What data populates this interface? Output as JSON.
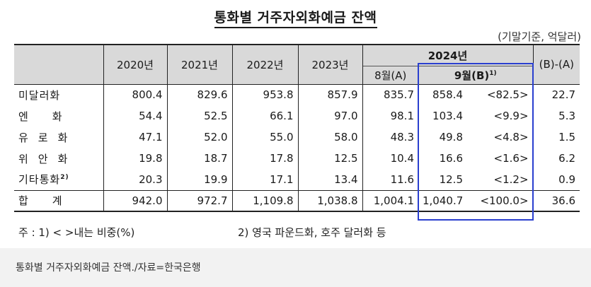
{
  "title": "통화별 거주자외화예금 잔액",
  "unit": "(기말기준, 억달러)",
  "headers": {
    "y2020": "2020년",
    "y2021": "2021년",
    "y2022": "2022년",
    "y2023": "2023년",
    "y2024": "2024년",
    "aug": "8월(A)",
    "sep": "9월(B)",
    "sep_note": "1)",
    "diff": "(B)-(A)"
  },
  "rows": [
    {
      "label": "미달러화",
      "y2020": "800.4",
      "y2021": "829.6",
      "y2022": "953.8",
      "y2023": "857.9",
      "aug": "835.7",
      "sep": "858.4",
      "share": "<82.5>",
      "diff": "22.7"
    },
    {
      "label": "엔화",
      "y2020": "54.4",
      "y2021": "52.5",
      "y2022": "66.1",
      "y2023": "97.0",
      "aug": "98.1",
      "sep": "103.4",
      "share": "<9.9>",
      "diff": "5.3"
    },
    {
      "label": "유로화",
      "y2020": "47.1",
      "y2021": "52.0",
      "y2022": "55.0",
      "y2023": "58.0",
      "aug": "48.3",
      "sep": "49.8",
      "share": "<4.8>",
      "diff": "1.5"
    },
    {
      "label": "위안화",
      "y2020": "19.8",
      "y2021": "18.7",
      "y2022": "17.8",
      "y2023": "12.5",
      "aug": "10.4",
      "sep": "16.6",
      "share": "<1.6>",
      "diff": "6.2"
    },
    {
      "label": "기타통화",
      "label_note": "2)",
      "y2020": "20.3",
      "y2021": "19.9",
      "y2022": "17.1",
      "y2023": "13.4",
      "aug": "11.6",
      "sep": "12.5",
      "share": "<1.2>",
      "diff": "0.9"
    },
    {
      "label": "합계",
      "y2020": "942.0",
      "y2021": "972.7",
      "y2022": "1,109.8",
      "y2023": "1,038.8",
      "aug": "1,004.1",
      "sep": "1,040.7",
      "share": "<100.0>",
      "diff": "36.6"
    }
  ],
  "notes": {
    "note1": "주 : 1) < >내는 비중(%)",
    "note2": "2) 영국 파운드화, 호주 달러화 등"
  },
  "caption": "통화별 거주자외화예금 잔액./자료=한국은행",
  "colors": {
    "header_bg": "#d9d9d9",
    "highlight_border": "#2a3fcf",
    "caption_bg": "#f2f2f2"
  }
}
